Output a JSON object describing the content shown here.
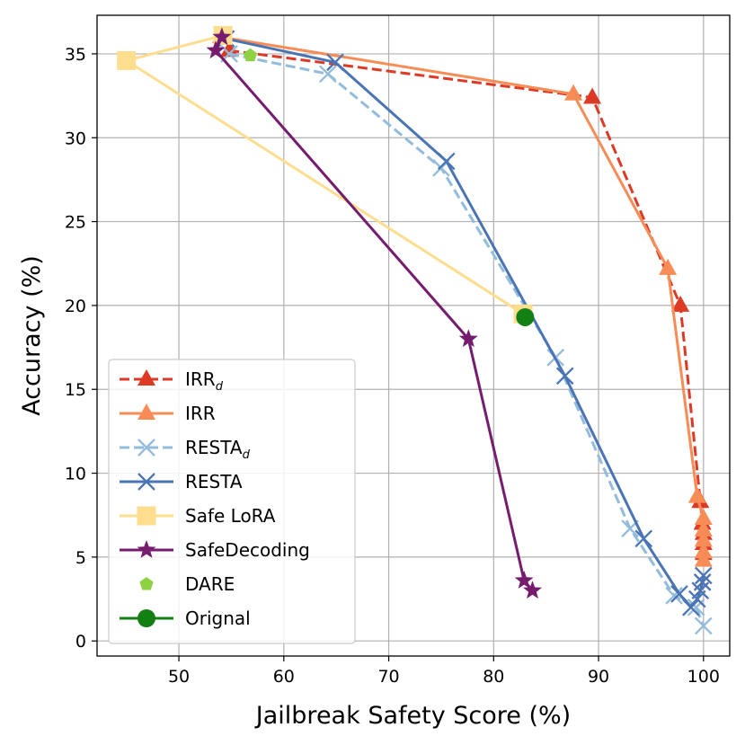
{
  "chart_data": {
    "type": "line",
    "title": "",
    "xlabel": "Jailbreak Safety Score (%)",
    "ylabel": "Accuracy (%)",
    "xlim": [
      42.2,
      102.5
    ],
    "ylim": [
      -0.9,
      37.3
    ],
    "xticks": [
      50,
      60,
      70,
      80,
      90,
      100
    ],
    "yticks": [
      0,
      5,
      10,
      15,
      20,
      25,
      30,
      35
    ],
    "grid": true,
    "legend_position": "lower-left",
    "series": [
      {
        "name": "IRR",
        "subscript": "d",
        "color": "#dd3a26",
        "marker": "triangle",
        "linestyle": "dashed",
        "points": [
          [
            54.8,
            35.2
          ],
          [
            89.4,
            32.4
          ],
          [
            97.8,
            20.0
          ],
          [
            99.7,
            8.3
          ],
          [
            99.9,
            7.0
          ],
          [
            100.0,
            6.4
          ],
          [
            100.0,
            5.8
          ],
          [
            100.0,
            5.2
          ]
        ]
      },
      {
        "name": "IRR",
        "subscript": "",
        "color": "#f88c56",
        "marker": "triangle",
        "linestyle": "solid",
        "points": [
          [
            54.0,
            36.0
          ],
          [
            87.6,
            32.6
          ],
          [
            96.6,
            22.2
          ],
          [
            99.4,
            8.6
          ],
          [
            100.0,
            7.3
          ],
          [
            100.0,
            6.6
          ],
          [
            100.0,
            6.0
          ],
          [
            100.0,
            5.3
          ],
          [
            100.0,
            4.8
          ]
        ]
      },
      {
        "name": "RESTA",
        "subscript": "d",
        "color": "#93bcdb",
        "marker": "x",
        "linestyle": "dashed",
        "points": [
          [
            54.8,
            35.0
          ],
          [
            64.2,
            33.8
          ],
          [
            75.0,
            28.2
          ],
          [
            85.9,
            16.9
          ],
          [
            93.0,
            6.7
          ],
          [
            97.2,
            2.7
          ],
          [
            99.3,
            2.0
          ],
          [
            100.0,
            0.9
          ]
        ]
      },
      {
        "name": "RESTA",
        "subscript": "",
        "color": "#4a74b4",
        "marker": "x",
        "linestyle": "solid",
        "points": [
          [
            54.5,
            35.9
          ],
          [
            64.9,
            34.5
          ],
          [
            75.5,
            28.6
          ],
          [
            86.8,
            15.8
          ],
          [
            94.3,
            6.1
          ],
          [
            97.7,
            2.8
          ],
          [
            98.8,
            2.0
          ],
          [
            99.4,
            2.5
          ],
          [
            99.7,
            3.0
          ],
          [
            99.9,
            3.5
          ],
          [
            100.0,
            3.9
          ]
        ]
      },
      {
        "name": "Safe LoRA",
        "subscript": "",
        "color": "#fddd8e",
        "marker": "square",
        "linestyle": "solid",
        "points": [
          [
            54.2,
            36.1
          ],
          [
            45.0,
            34.6
          ],
          [
            82.8,
            19.5
          ]
        ]
      },
      {
        "name": "SafeDecoding",
        "subscript": "",
        "color": "#761c6e",
        "marker": "star",
        "linestyle": "solid",
        "points": [
          [
            54.1,
            36.0
          ],
          [
            53.5,
            35.2
          ],
          [
            77.6,
            18.0
          ],
          [
            82.9,
            3.6
          ],
          [
            83.7,
            3.0
          ]
        ]
      },
      {
        "name": "DARE",
        "subscript": "",
        "color": "#8ed142",
        "marker": "pentagon",
        "linestyle": "none",
        "points": [
          [
            56.8,
            34.9
          ]
        ]
      },
      {
        "name": "Orignal",
        "subscript": "",
        "color": "#138013",
        "marker": "circle",
        "linestyle": "solid",
        "points": [
          [
            83.0,
            19.3
          ]
        ]
      }
    ]
  }
}
